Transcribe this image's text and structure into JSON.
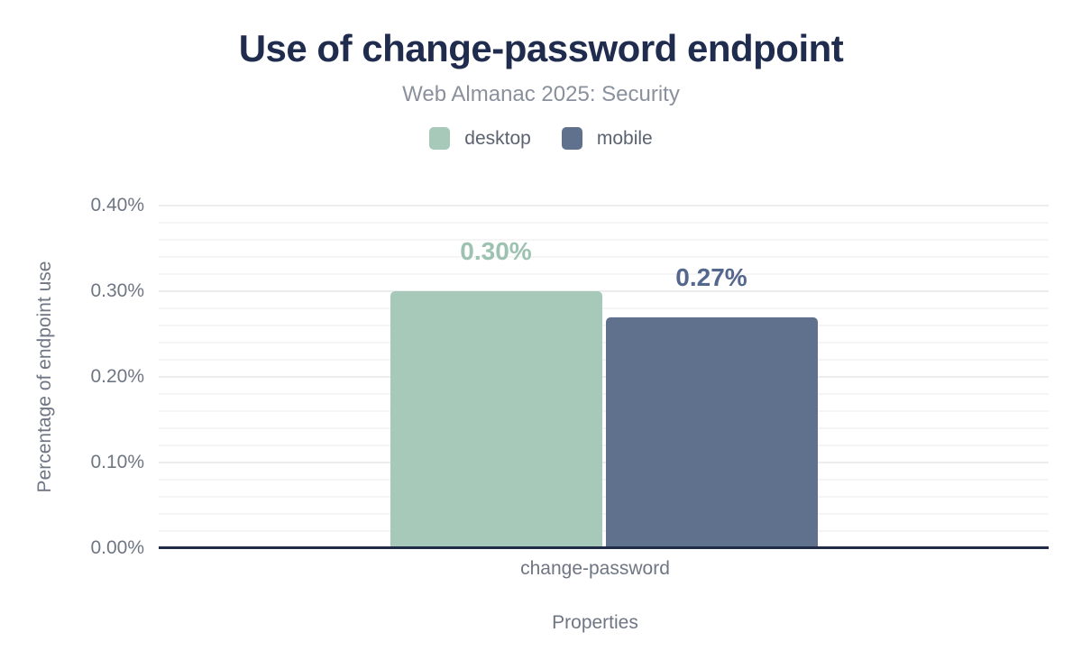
{
  "chart_data": {
    "type": "bar",
    "title": "Use of change-password endpoint",
    "subtitle": "Web Almanac 2025: Security",
    "categories": [
      "change-password"
    ],
    "series": [
      {
        "name": "desktop",
        "values": [
          0.3
        ],
        "display_labels": [
          "0.30%"
        ],
        "color": "#a6c9b9",
        "label_color": "#9dc2b1"
      },
      {
        "name": "mobile",
        "values": [
          0.27
        ],
        "display_labels": [
          "0.27%"
        ],
        "color": "#5f718d",
        "label_color": "#54678c"
      }
    ],
    "xlabel": "Properties",
    "ylabel": "Percentage of endpoint use",
    "ylim": [
      0,
      0.4
    ],
    "yticks": [
      {
        "value": 0.0,
        "label": "0.00%"
      },
      {
        "value": 0.1,
        "label": "0.10%"
      },
      {
        "value": 0.2,
        "label": "0.20%"
      },
      {
        "value": 0.3,
        "label": "0.30%"
      },
      {
        "value": 0.4,
        "label": "0.40%"
      }
    ],
    "minor_grid_step": 0.02,
    "grid": true,
    "legend_position": "top"
  },
  "colors": {
    "title": "#202c4e",
    "subtitle": "#8a909c",
    "axis_text": "#6f7683",
    "legend_text": "#5b6370",
    "axis_line": "#1f2b49",
    "grid_major": "#ededed",
    "grid_minor": "#f5f5f6",
    "background": "#ffffff"
  }
}
